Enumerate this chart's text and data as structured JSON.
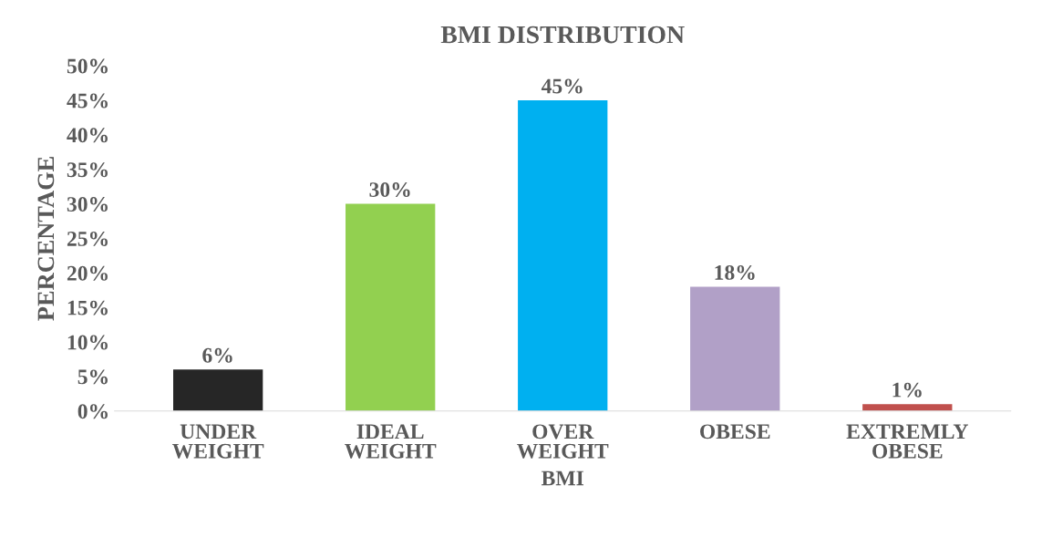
{
  "chart_data": {
    "type": "bar",
    "title": "BMI DISTRIBUTION",
    "xlabel": "BMI",
    "ylabel": "PERCENTAGE",
    "categories": [
      "UNDER\nWEIGHT",
      "IDEAL\nWEIGHT",
      "OVER\nWEIGHT",
      "OBESE",
      "EXTREMLY\nOBESE"
    ],
    "values": [
      6,
      30,
      45,
      18,
      1
    ],
    "colors": [
      "#262626",
      "#92d050",
      "#00b0f0",
      "#b1a0c7",
      "#c0504d"
    ],
    "value_labels": [
      "6%",
      "30%",
      "45%",
      "18%",
      "1%"
    ],
    "ylim": [
      0,
      50
    ],
    "yticks": [
      {
        "value": 0,
        "label": "0%"
      },
      {
        "value": 5,
        "label": "5%"
      },
      {
        "value": 10,
        "label": "10%"
      },
      {
        "value": 15,
        "label": "15%"
      },
      {
        "value": 20,
        "label": "20%"
      },
      {
        "value": 25,
        "label": "25%"
      },
      {
        "value": 30,
        "label": "30%"
      },
      {
        "value": 35,
        "label": "35%"
      },
      {
        "value": 40,
        "label": "40%"
      },
      {
        "value": 45,
        "label": "45%"
      },
      {
        "value": 50,
        "label": "50%"
      }
    ],
    "grid": false,
    "legend": false
  }
}
